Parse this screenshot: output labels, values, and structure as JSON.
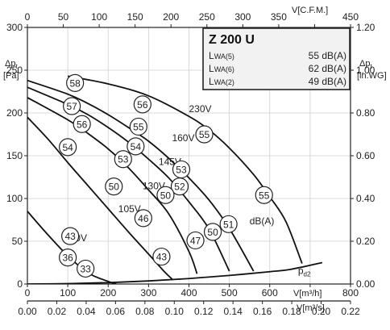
{
  "chart_data": {
    "type": "line",
    "title": "Z 200 U",
    "legend_rows": [
      {
        "label_main": "L",
        "label_sub": "WA(5)",
        "value": "55 dB(A)"
      },
      {
        "label_main": "L",
        "label_sub": "WA(6)",
        "value": "62 dB(A)"
      },
      {
        "label_main": "L",
        "label_sub": "WA(2)",
        "value": "49 dB(A)"
      }
    ],
    "axes": {
      "x_bottom": {
        "label": "V[m³/h]",
        "range": [
          0,
          800
        ],
        "ticks": [
          "0",
          "100",
          "200",
          "300",
          "400",
          "500",
          "600",
          "700",
          "800"
        ]
      },
      "x_top": {
        "label": "V[C.F.M.]",
        "range": [
          0,
          450
        ],
        "ticks": [
          "0",
          "50",
          "100",
          "150",
          "200",
          "250",
          "300",
          "350",
          "400",
          "450"
        ]
      },
      "x_bottom2": {
        "label": "V[m³/s]",
        "range": [
          0,
          0.22
        ],
        "ticks": [
          "0.00",
          "0.02",
          "0.04",
          "0.06",
          "0.08",
          "0.10",
          "0.12",
          "0.14",
          "0.16",
          "0.18",
          "0.20",
          "0.22"
        ]
      },
      "y_left": {
        "label_main": "Δp",
        "label_sub": "t",
        "unit": "[Pa]",
        "range": [
          0,
          300
        ],
        "ticks": [
          "0",
          "50",
          "100",
          "150",
          "200",
          "250",
          "300"
        ]
      },
      "y_right": {
        "label_main": "Δp",
        "label_sub": "t",
        "unit": "[in.WG]",
        "range": [
          0,
          1.2
        ],
        "ticks": [
          "0.00",
          "0.20",
          "0.40",
          "0.60",
          "0.80",
          "1.00",
          "1.20"
        ]
      }
    },
    "series": [
      {
        "name": "230V",
        "x": [
          100,
          200,
          300,
          400,
          450,
          500,
          560,
          600,
          640,
          680
        ],
        "y": [
          243,
          234,
          220,
          196,
          180,
          159,
          128,
          102,
          73,
          24
        ]
      },
      {
        "name": "160V",
        "x": [
          0,
          100,
          150,
          200,
          250,
          300,
          350,
          400,
          450,
          500,
          560
        ],
        "y": [
          238,
          222,
          211,
          198,
          183,
          167,
          147,
          124,
          98,
          65,
          15
        ]
      },
      {
        "name": "145V",
        "x": [
          0,
          100,
          150,
          200,
          250,
          300,
          350,
          400,
          450,
          500
        ],
        "y": [
          230,
          210,
          198,
          183,
          166,
          146,
          124,
          96,
          64,
          15
        ]
      },
      {
        "name": "130V",
        "x": [
          0,
          100,
          150,
          200,
          250,
          300,
          350,
          400,
          420
        ],
        "y": [
          218,
          192,
          176,
          158,
          136,
          110,
          82,
          38,
          12
        ]
      },
      {
        "name": "105V",
        "x": [
          0,
          50,
          100,
          150,
          200,
          250,
          300,
          340,
          360
        ],
        "y": [
          195,
          170,
          142,
          115,
          88,
          61,
          35,
          14,
          5
        ]
      },
      {
        "name": "60V",
        "x": [
          0,
          50,
          100,
          150,
          200,
          220
        ],
        "y": [
          85,
          58,
          33,
          13,
          3,
          0
        ]
      },
      {
        "name": "p_d2",
        "x": [
          0,
          100,
          200,
          300,
          400,
          500,
          600,
          650,
          730
        ],
        "y": [
          0,
          0.4,
          1.6,
          3.6,
          6.4,
          10,
          14.4,
          17,
          25
        ]
      }
    ],
    "series_labels": [
      {
        "text": "230V",
        "x": 400,
        "y": 201
      },
      {
        "text": "160V",
        "x": 358,
        "y": 167
      },
      {
        "text": "145V",
        "x": 325,
        "y": 139
      },
      {
        "text": "130V",
        "x": 285,
        "y": 111
      },
      {
        "text": "105V",
        "x": 225,
        "y": 84
      },
      {
        "text": "60V",
        "x": 105,
        "y": 50
      },
      {
        "text": "dB(A)",
        "x": 550,
        "y": 70
      }
    ],
    "pd2_label": {
      "text": "p",
      "sub": "d2",
      "x": 670,
      "y": 12
    },
    "annotations": [
      {
        "text": "58",
        "x": 118,
        "y": 235
      },
      {
        "text": "57",
        "x": 110,
        "y": 208
      },
      {
        "text": "56",
        "x": 285,
        "y": 210
      },
      {
        "text": "56",
        "x": 135,
        "y": 187
      },
      {
        "text": "55",
        "x": 275,
        "y": 184
      },
      {
        "text": "55",
        "x": 438,
        "y": 175
      },
      {
        "text": "54",
        "x": 100,
        "y": 160
      },
      {
        "text": "54",
        "x": 268,
        "y": 161
      },
      {
        "text": "53",
        "x": 237,
        "y": 146
      },
      {
        "text": "53",
        "x": 381,
        "y": 134
      },
      {
        "text": "52",
        "x": 377,
        "y": 114
      },
      {
        "text": "50",
        "x": 214,
        "y": 114
      },
      {
        "text": "50",
        "x": 342,
        "y": 104
      },
      {
        "text": "55",
        "x": 586,
        "y": 104
      },
      {
        "text": "46",
        "x": 287,
        "y": 77
      },
      {
        "text": "51",
        "x": 498,
        "y": 70
      },
      {
        "text": "50",
        "x": 459,
        "y": 61
      },
      {
        "text": "47",
        "x": 416,
        "y": 51
      },
      {
        "text": "43",
        "x": 106,
        "y": 56
      },
      {
        "text": "43",
        "x": 332,
        "y": 32
      },
      {
        "text": "36",
        "x": 100,
        "y": 31
      },
      {
        "text": "33",
        "x": 144,
        "y": 18
      }
    ],
    "grid": true
  }
}
